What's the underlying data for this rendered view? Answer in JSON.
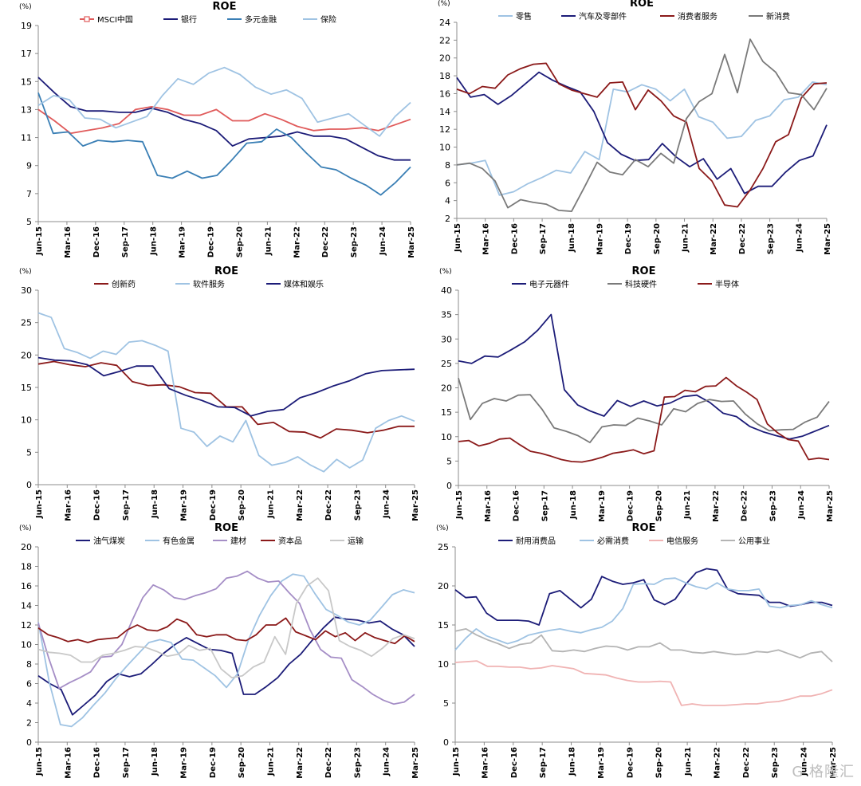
{
  "watermark": "G 格隆汇",
  "chart_data": [
    {
      "type": "line",
      "title": "ROE",
      "ylabel": "(%)",
      "ylim": [
        5,
        19
      ],
      "yticks": [
        5,
        7,
        9,
        11,
        13,
        15,
        17,
        19
      ],
      "x_labels": [
        "Jun-15",
        "Mar-16",
        "Dec-16",
        "Sep-17",
        "Jun-18",
        "Mar-19",
        "Dec-19",
        "Sep-20",
        "Jun-21",
        "Mar-22",
        "Dec-22",
        "Sep-23",
        "Jun-24",
        "Mar-25"
      ],
      "legend_position": "top",
      "series": [
        {
          "name": "MSCI中国",
          "color": "#e05a5a",
          "marker": "box",
          "values": [
            13,
            12.2,
            11.3,
            11.5,
            11.7,
            12,
            13,
            13.2,
            13,
            12.6,
            12.6,
            13,
            12.2,
            12.2,
            12.7,
            12.3,
            11.8,
            11.5,
            11.6,
            11.6,
            11.7,
            11.5,
            11.9,
            12.3
          ]
        },
        {
          "name": "银行",
          "color": "#1c1c78",
          "values": [
            15.3,
            14.2,
            13.2,
            12.9,
            12.9,
            12.8,
            12.8,
            13.1,
            12.8,
            12.3,
            12,
            11.5,
            10.4,
            10.9,
            11,
            11.1,
            11.4,
            11.1,
            11.1,
            10.9,
            10.3,
            9.7,
            9.4,
            9.4
          ]
        },
        {
          "name": "多元金融",
          "color": "#3a7fb5",
          "values": [
            14.2,
            11.3,
            11.4,
            10.4,
            10.8,
            10.7,
            10.8,
            10.7,
            8.3,
            8.1,
            8.6,
            8.1,
            8.3,
            9.4,
            10.6,
            10.7,
            11.6,
            11,
            9.9,
            8.9,
            8.7,
            8.1,
            7.6,
            6.9,
            7.8,
            8.9
          ]
        },
        {
          "name": "保险",
          "color": "#9fc3e3",
          "values": [
            13.3,
            14,
            13.7,
            12.4,
            12.3,
            11.7,
            12.1,
            12.5,
            14,
            15.2,
            14.8,
            15.6,
            16,
            15.5,
            14.6,
            14.1,
            14.4,
            13.8,
            12.1,
            12.4,
            12.7,
            11.9,
            11.1,
            12.5,
            13.5
          ]
        }
      ]
    },
    {
      "type": "line",
      "title": "ROE",
      "ylabel": "(%)",
      "ylim": [
        2,
        24
      ],
      "yticks": [
        2,
        4,
        6,
        8,
        10,
        12,
        14,
        16,
        18,
        20,
        22,
        24
      ],
      "x_labels": [
        "Jun-15",
        "Mar-16",
        "Dec-16",
        "Sep-17",
        "Jun-18",
        "Mar-19",
        "Dec-19",
        "Sep-20",
        "Jun-21",
        "Mar-22",
        "Dec-22",
        "Sep-23",
        "Jun-24",
        "Mar-25"
      ],
      "legend_position": "top",
      "series": [
        {
          "name": "零售",
          "color": "#9fc3e3",
          "values": [
            8,
            8.2,
            8.5,
            4.6,
            5,
            5.9,
            6.6,
            7.4,
            7.1,
            9.5,
            8.6,
            16.5,
            16.2,
            17,
            16.5,
            15.2,
            16.5,
            13.4,
            12.8,
            11,
            11.2,
            13,
            13.5,
            15.3,
            15.6,
            17.3,
            17
          ]
        },
        {
          "name": "汽车及零部件",
          "color": "#1c1c78",
          "values": [
            17.8,
            15.6,
            15.9,
            14.8,
            15.8,
            17.1,
            18.4,
            17.5,
            16.8,
            16.2,
            14,
            10.5,
            9.2,
            8.5,
            8.6,
            10.4,
            8.9,
            7.8,
            8.7,
            6.4,
            7.6,
            4.8,
            5.6,
            5.6,
            7.2,
            8.5,
            9,
            12.5
          ]
        },
        {
          "name": "消费者服务",
          "color": "#8b1a1a",
          "values": [
            16.5,
            16,
            16.8,
            16.6,
            18.1,
            18.8,
            19.3,
            19.4,
            17.1,
            16.4,
            16,
            15.6,
            17.2,
            17.3,
            14.2,
            16.4,
            15.2,
            13.5,
            12.8,
            7.6,
            6.2,
            3.5,
            3.3,
            5.2,
            7.6,
            10.6,
            11.4,
            15.5,
            17.1,
            17.2
          ]
        },
        {
          "name": "新消费",
          "color": "#7a7a7a",
          "values": [
            8,
            8.2,
            7.6,
            6.2,
            3.2,
            4.1,
            3.8,
            3.6,
            2.9,
            2.8,
            5.5,
            8.3,
            7.2,
            6.9,
            8.6,
            7.8,
            9.3,
            8.2,
            13.2,
            15.1,
            16,
            20.4,
            16.1,
            22.1,
            19.6,
            18.4,
            16.1,
            15.9,
            14.2,
            16.6
          ]
        }
      ]
    },
    {
      "type": "line",
      "title": "ROE",
      "ylabel": "(%)",
      "ylim": [
        0,
        30
      ],
      "yticks": [
        0,
        5,
        10,
        15,
        20,
        25,
        30
      ],
      "x_labels": [
        "Jun-15",
        "Mar-16",
        "Dec-16",
        "Sep-17",
        "Jun-18",
        "Mar-19",
        "Dec-19",
        "Sep-20",
        "Jun-21",
        "Mar-22",
        "Dec-22",
        "Sep-23",
        "Jun-24",
        "Mar-25"
      ],
      "legend_position": "top",
      "series": [
        {
          "name": "创新药",
          "color": "#8b1a1a",
          "values": [
            18.6,
            19,
            18.5,
            18.2,
            18.8,
            18.4,
            15.9,
            15.3,
            15.4,
            15.1,
            14.2,
            14.1,
            12,
            12,
            9.3,
            9.6,
            8.2,
            8.1,
            7.2,
            8.6,
            8.4,
            8,
            8.4,
            9,
            9
          ]
        },
        {
          "name": "软件服务",
          "color": "#9fc3e3",
          "values": [
            26.5,
            25.8,
            21,
            20.4,
            19.5,
            20.6,
            20.1,
            22,
            22.2,
            21.5,
            20.6,
            8.7,
            8.1,
            5.9,
            7.5,
            6.6,
            9.9,
            4.5,
            3,
            3.4,
            4.3,
            3,
            2,
            3.9,
            2.6,
            3.8,
            8.7,
            9.9,
            10.6,
            9.8
          ]
        },
        {
          "name": "媒体和娱乐",
          "color": "#1c1c78",
          "values": [
            19.6,
            19.2,
            19.1,
            18.5,
            16.8,
            17.5,
            18.3,
            18.3,
            14.8,
            13.8,
            13,
            12,
            11.9,
            10.6,
            11.3,
            11.6,
            13.4,
            14.2,
            15.2,
            16,
            17.1,
            17.6,
            17.7,
            17.8
          ]
        }
      ]
    },
    {
      "type": "line",
      "title": "ROE",
      "ylabel": "(%)",
      "ylim": [
        0,
        40
      ],
      "yticks": [
        0,
        5,
        10,
        15,
        20,
        25,
        30,
        35,
        40
      ],
      "x_labels": [
        "Jun-15",
        "Mar-16",
        "Dec-16",
        "Sep-17",
        "Jun-18",
        "Mar-19",
        "Dec-19",
        "Sep-20",
        "Jun-21",
        "Mar-22",
        "Dec-22",
        "Sep-23",
        "Jun-24",
        "Mar-25"
      ],
      "legend_position": "top",
      "series": [
        {
          "name": "电子元器件",
          "color": "#1c1c78",
          "values": [
            25.5,
            25,
            26.5,
            26.3,
            27.8,
            29.4,
            31.8,
            35,
            19.6,
            16.5,
            15.2,
            14.2,
            17.4,
            16.2,
            17.3,
            16.3,
            16.9,
            18.2,
            18.5,
            17,
            14.8,
            14.1,
            12.1,
            11,
            10.2,
            9.5,
            10.1,
            11.2,
            12.3
          ]
        },
        {
          "name": "科技硬件",
          "color": "#7a7a7a",
          "values": [
            22,
            13.5,
            16.8,
            17.8,
            17.3,
            18.5,
            18.6,
            15.6,
            11.8,
            11.1,
            10.2,
            8.8,
            12,
            12.4,
            12.3,
            13.8,
            13.2,
            12.4,
            15.7,
            15.1,
            16.8,
            17.6,
            17.2,
            17.3,
            14.6,
            12.6,
            11.2,
            11.4,
            11.5,
            13,
            14,
            17.2
          ]
        },
        {
          "name": "半导体",
          "color": "#8b1a1a",
          "values": [
            9,
            9.2,
            8.1,
            8.6,
            9.5,
            9.7,
            8.3,
            7,
            6.6,
            6,
            5.3,
            4.9,
            4.8,
            5.2,
            5.8,
            6.6,
            6.9,
            7.3,
            6.5,
            7.1,
            18.1,
            18.2,
            19.5,
            19.2,
            20.3,
            20.4,
            22.1,
            20.4,
            19.1,
            17.6,
            12.6,
            10.8,
            9.4,
            9.1,
            5.3,
            5.6,
            5.3
          ]
        }
      ]
    },
    {
      "type": "line",
      "title": "ROE",
      "ylabel": "(%)",
      "ylim": [
        0,
        20
      ],
      "yticks": [
        0,
        2,
        4,
        6,
        8,
        10,
        12,
        14,
        16,
        18,
        20
      ],
      "x_labels": [
        "Jun-15",
        "Mar-16",
        "Dec-16",
        "Sep-17",
        "Jun-18",
        "Mar-19",
        "Dec-19",
        "Sep-20",
        "Jun-21",
        "Mar-22",
        "Dec-22",
        "Sep-23",
        "Jun-24",
        "Mar-25"
      ],
      "legend_position": "top",
      "series": [
        {
          "name": "油气煤炭",
          "color": "#1c1c78",
          "values": [
            6.8,
            6,
            5.4,
            2.8,
            3.8,
            4.8,
            6.2,
            7,
            6.7,
            7,
            8,
            9.1,
            10,
            10.7,
            10.1,
            9.5,
            9.4,
            9.1,
            4.9,
            4.9,
            5.7,
            6.6,
            8,
            9,
            10.4,
            11.7,
            12.8,
            12.6,
            12.5,
            12.2,
            12.4,
            11.6,
            11,
            9.8
          ]
        },
        {
          "name": "有色金属",
          "color": "#9fc3e3",
          "values": [
            12.3,
            6.1,
            1.8,
            1.6,
            2.5,
            3.8,
            5,
            6.5,
            7.8,
            9,
            10.2,
            10.5,
            10.2,
            8.5,
            8.4,
            7.6,
            6.8,
            5.6,
            7,
            10.5,
            13,
            15,
            16.5,
            17.2,
            17,
            15.2,
            13.6,
            13,
            12.3,
            12,
            12.5,
            13.8,
            15.1,
            15.6,
            15.3
          ]
        },
        {
          "name": "建材",
          "color": "#a58ec6",
          "values": [
            12.2,
            8.6,
            5.5,
            6.1,
            6.6,
            7.2,
            8.7,
            8.8,
            10,
            12.5,
            14.8,
            16.1,
            15.6,
            14.8,
            14.6,
            15,
            15.3,
            15.7,
            16.8,
            17,
            17.5,
            16.8,
            16.4,
            16.5,
            15.3,
            14.2,
            11.5,
            9.5,
            8.7,
            8.6,
            6.4,
            5.7,
            4.9,
            4.3,
            3.9,
            4.1,
            4.9
          ]
        },
        {
          "name": "资本品",
          "color": "#8b1a1a",
          "values": [
            11.7,
            11,
            10.7,
            10.3,
            10.5,
            10.2,
            10.5,
            10.6,
            10.7,
            11.5,
            12,
            11.5,
            11.4,
            11.8,
            12.6,
            12.2,
            11,
            10.8,
            11,
            11,
            10.5,
            10.4,
            11,
            12,
            12,
            12.7,
            11.3,
            10.9,
            10.5,
            11.4,
            10.8,
            11.2,
            10.4,
            11.2,
            10.7,
            10.4,
            10.1,
            10.9,
            10.3
          ]
        },
        {
          "name": "运输",
          "color": "#c8c8c8",
          "values": [
            9.5,
            9.2,
            9.1,
            8.9,
            8.2,
            8.2,
            8.9,
            9.1,
            9.4,
            9.8,
            9.7,
            9.3,
            8.8,
            9,
            9.9,
            9.4,
            9.6,
            7.5,
            6.6,
            6.8,
            7.7,
            8.2,
            10.8,
            9,
            14.2,
            16,
            16.8,
            15.5,
            10.4,
            9.8,
            9.4,
            8.8,
            9.6,
            10.6,
            11,
            10.6
          ]
        }
      ]
    },
    {
      "type": "line",
      "title": "ROE",
      "ylabel": "(%)",
      "ylim": [
        0,
        25
      ],
      "yticks": [
        0,
        5,
        10,
        15,
        20,
        25
      ],
      "x_labels": [
        "Jun-15",
        "Mar-16",
        "Dec-16",
        "Sep-17",
        "Jun-18",
        "Mar-19",
        "Dec-19",
        "Sep-20",
        "Jun-21",
        "Mar-22",
        "Dec-22",
        "Sep-23",
        "Jun-24",
        "Mar-25"
      ],
      "legend_position": "top",
      "series": [
        {
          "name": "耐用消费品",
          "color": "#1c1c78",
          "values": [
            19.5,
            18.5,
            18.6,
            16.5,
            15.6,
            15.6,
            15.6,
            15.5,
            15,
            19,
            19.4,
            18.3,
            17.2,
            18.3,
            21.2,
            20.6,
            20.2,
            20.4,
            20.8,
            18.2,
            17.6,
            18.3,
            20.2,
            21.7,
            22.2,
            22,
            19.6,
            19,
            18.9,
            18.8,
            17.9,
            17.9,
            17.4,
            17.6,
            17.9,
            17.9,
            17.5
          ]
        },
        {
          "name": "必需消费",
          "color": "#9fc3e3",
          "values": [
            11.8,
            13.3,
            14.5,
            13.6,
            13.1,
            12.6,
            13,
            13.7,
            14,
            14.3,
            14.5,
            14.2,
            14,
            14.4,
            14.7,
            15.5,
            17.1,
            20.2,
            20.3,
            20.2,
            20.9,
            21,
            20.4,
            19.9,
            19.6,
            20.4,
            19.6,
            19.4,
            19.4,
            19.6,
            17.4,
            17.2,
            17.5,
            17.6,
            18.1,
            17.6,
            17.2
          ]
        },
        {
          "name": "电信服务",
          "color": "#f0b3b3",
          "values": [
            10.2,
            10.3,
            10.4,
            9.7,
            9.7,
            9.6,
            9.6,
            9.4,
            9.5,
            9.8,
            9.6,
            9.4,
            8.8,
            8.7,
            8.6,
            8.2,
            7.9,
            7.7,
            7.7,
            7.8,
            7.7,
            4.7,
            4.9,
            4.7,
            4.7,
            4.7,
            4.8,
            4.9,
            4.9,
            5.1,
            5.2,
            5.5,
            5.9,
            5.9,
            6.2,
            6.7
          ]
        },
        {
          "name": "公用事业",
          "color": "#b4b4b4",
          "values": [
            14.2,
            14.5,
            13.7,
            13.1,
            12.6,
            12,
            12.5,
            12.7,
            13.7,
            11.7,
            11.6,
            11.8,
            11.6,
            12,
            12.3,
            12.2,
            11.8,
            12.2,
            12.2,
            12.7,
            11.8,
            11.8,
            11.5,
            11.4,
            11.6,
            11.4,
            11.2,
            11.3,
            11.6,
            11.5,
            11.8,
            11.3,
            10.8,
            11.4,
            11.6,
            10.3
          ]
        }
      ]
    }
  ]
}
